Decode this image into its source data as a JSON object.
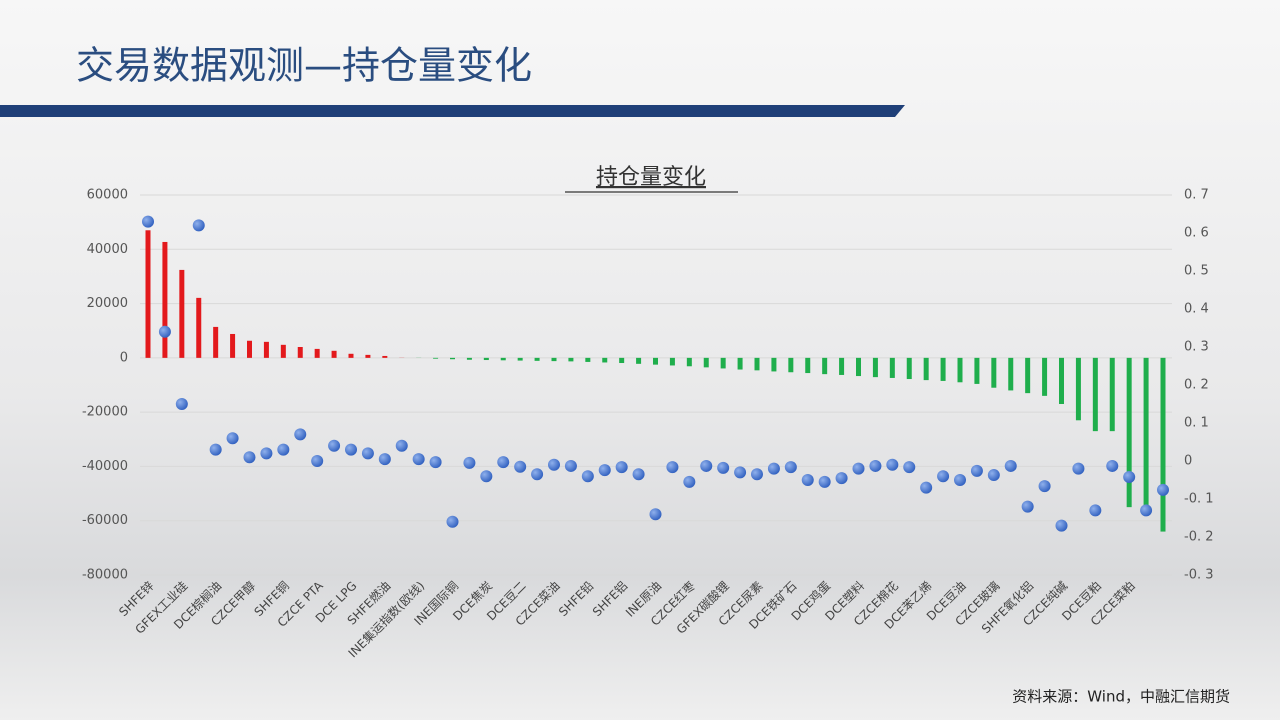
{
  "header": {
    "title": "交易数据观测—持仓量变化"
  },
  "footer": {
    "source": "资料来源：Wind，中融汇信期货"
  },
  "chart_data": {
    "type": "combo",
    "title": "持仓量变化",
    "categories": [
      "SHFE锌",
      null,
      "GFEX工业硅",
      null,
      "DCE棕榈油",
      null,
      "CZCE甲醇",
      null,
      "SHFE铜",
      null,
      "CZCE PTA",
      null,
      "DCE LPG",
      null,
      "SHFE燃油",
      null,
      "INE集运指数(欧线)",
      null,
      "INE国际铜",
      null,
      "DCE焦炭",
      null,
      "DCE豆二",
      null,
      "CZCE菜油",
      null,
      "SHFE铅",
      null,
      "SHFE铝",
      null,
      "INE原油",
      null,
      "CZCE红枣",
      null,
      "GFEX碳酸锂",
      null,
      "CZCE尿素",
      null,
      "DCE铁矿石",
      null,
      "DCE鸡蛋",
      null,
      "DCE塑料",
      null,
      "CZCE棉花",
      null,
      "DCE苯乙烯",
      null,
      "DCE豆油",
      null,
      "CZCE玻璃",
      null,
      "SHFE氧化铝",
      null,
      "CZCE纯碱",
      null,
      "DCE豆粕",
      null,
      "CZCE菜粕",
      null,
      null
    ],
    "series": [
      {
        "type": "bar",
        "color": "#e3191c",
        "negative_color": "#1fae4c",
        "values": [
          47000,
          42700,
          32400,
          22100,
          11400,
          8800,
          6300,
          5900,
          4800,
          4000,
          3300,
          2600,
          1500,
          1100,
          700,
          50,
          -50,
          -300,
          -500,
          -700,
          -800,
          -900,
          -1000,
          -1100,
          -1200,
          -1300,
          -1500,
          -1700,
          -1900,
          -2200,
          -2500,
          -2800,
          -3100,
          -3500,
          -3900,
          -4300,
          -4600,
          -5000,
          -5300,
          -5600,
          -6000,
          -6300,
          -6700,
          -7100,
          -7400,
          -7800,
          -8200,
          -8500,
          -9000,
          -9600,
          -11000,
          -12000,
          -13000,
          -14000,
          -17000,
          -23000,
          -27000,
          -27000,
          -55000,
          -55000,
          -64000
        ]
      },
      {
        "type": "scatter",
        "axis": "y2",
        "color": "#3d6cc8",
        "values": [
          0.63,
          0.34,
          0.15,
          0.62,
          0.03,
          0.06,
          0.01,
          0.02,
          0.03,
          0.07,
          0.0,
          0.04,
          0.03,
          0.02,
          0.005,
          0.04,
          0.005,
          -0.003,
          -0.16,
          -0.005,
          -0.04,
          -0.003,
          -0.015,
          -0.035,
          -0.01,
          -0.013,
          -0.04,
          -0.024,
          -0.016,
          -0.035,
          -0.14,
          -0.016,
          -0.055,
          -0.013,
          -0.018,
          -0.03,
          -0.035,
          -0.02,
          -0.016,
          -0.05,
          -0.055,
          -0.045,
          -0.02,
          -0.013,
          -0.01,
          -0.016,
          -0.07,
          -0.04,
          -0.05,
          -0.026,
          -0.037,
          -0.013,
          -0.12,
          -0.066,
          -0.17,
          -0.02,
          -0.13,
          -0.013,
          -0.042,
          -0.13,
          -0.076
        ]
      }
    ],
    "ylim": [
      -80000,
      60000
    ],
    "yticks": [
      -80000,
      -60000,
      -40000,
      -20000,
      0,
      20000,
      40000,
      60000
    ],
    "y2lim": [
      -0.3,
      0.7
    ],
    "y2ticks": [
      {
        "value": -0.3,
        "label": "-0. 3"
      },
      {
        "value": -0.2,
        "label": "-0. 2"
      },
      {
        "value": -0.1,
        "label": "-0. 1"
      },
      0,
      {
        "value": 0.1,
        "label": "0. 1"
      },
      {
        "value": 0.2,
        "label": "0. 2"
      },
      {
        "value": 0.3,
        "label": "0. 3"
      },
      {
        "value": 0.4,
        "label": "0. 4"
      },
      {
        "value": 0.5,
        "label": "0. 5"
      },
      {
        "value": 0.6,
        "label": "0. 6"
      },
      {
        "value": 0.7,
        "label": "0. 7"
      }
    ],
    "grid": true
  }
}
